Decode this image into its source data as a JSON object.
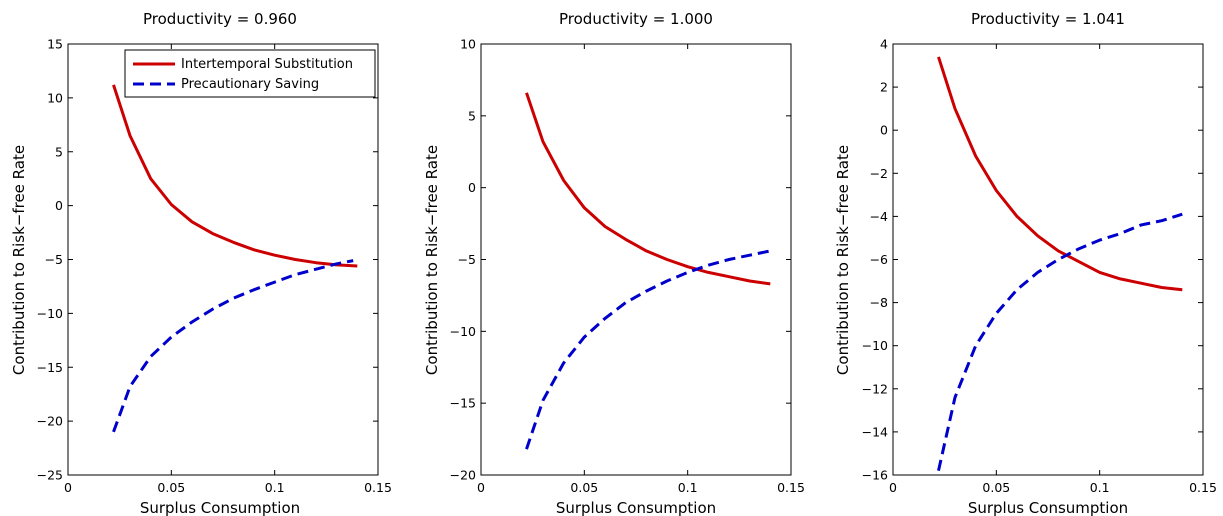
{
  "chart_data": [
    {
      "type": "line",
      "title": "Productivity = 0.960",
      "xlabel": "Surplus Consumption",
      "ylabel": "Contribution to Risk−free Rate",
      "xlim": [
        0,
        0.15
      ],
      "ylim": [
        -25,
        15
      ],
      "xticks": [
        0,
        0.05,
        0.1,
        0.15
      ],
      "xtick_labels": [
        "0",
        "0.05",
        "0.1",
        "0.15"
      ],
      "yticks": [
        -25,
        -20,
        -15,
        -10,
        -5,
        0,
        5,
        10,
        15
      ],
      "ytick_labels": [
        "−25",
        "−20",
        "−15",
        "−10",
        "−5",
        "0",
        "5",
        "10",
        "15"
      ],
      "grid": false,
      "legend": "top-right",
      "series": [
        {
          "name": "Intertemporal Substitution",
          "color": "#cc0000",
          "style": "solid",
          "x": [
            0.022,
            0.03,
            0.04,
            0.05,
            0.06,
            0.07,
            0.08,
            0.09,
            0.1,
            0.11,
            0.12,
            0.13,
            0.14
          ],
          "y": [
            11.2,
            6.5,
            2.5,
            0.1,
            -1.5,
            -2.6,
            -3.4,
            -4.1,
            -4.6,
            -5.0,
            -5.3,
            -5.5,
            -5.6
          ]
        },
        {
          "name": "Precautionary Saving",
          "color": "#0000cc",
          "style": "dashed",
          "x": [
            0.022,
            0.03,
            0.04,
            0.05,
            0.06,
            0.07,
            0.08,
            0.09,
            0.1,
            0.11,
            0.12,
            0.13,
            0.138
          ],
          "y": [
            -21.0,
            -16.8,
            -14.0,
            -12.2,
            -10.8,
            -9.6,
            -8.6,
            -7.8,
            -7.1,
            -6.4,
            -5.9,
            -5.4,
            -5.1
          ]
        }
      ]
    },
    {
      "type": "line",
      "title": "Productivity = 1.000",
      "xlabel": "Surplus Consumption",
      "ylabel": "Contribution to Risk−free Rate",
      "xlim": [
        0,
        0.15
      ],
      "ylim": [
        -20,
        10
      ],
      "xticks": [
        0,
        0.05,
        0.1,
        0.15
      ],
      "xtick_labels": [
        "0",
        "0.05",
        "0.1",
        "0.15"
      ],
      "yticks": [
        -20,
        -15,
        -10,
        -5,
        0,
        5,
        10
      ],
      "ytick_labels": [
        "−20",
        "−15",
        "−10",
        "−5",
        "0",
        "5",
        "10"
      ],
      "grid": false,
      "series": [
        {
          "color": "#cc0000",
          "style": "solid",
          "x": [
            0.022,
            0.03,
            0.04,
            0.05,
            0.06,
            0.07,
            0.08,
            0.09,
            0.1,
            0.11,
            0.12,
            0.13,
            0.14
          ],
          "y": [
            6.6,
            3.2,
            0.5,
            -1.4,
            -2.7,
            -3.6,
            -4.4,
            -5.0,
            -5.5,
            -5.9,
            -6.2,
            -6.5,
            -6.7
          ]
        },
        {
          "color": "#0000cc",
          "style": "dashed",
          "x": [
            0.022,
            0.03,
            0.04,
            0.05,
            0.06,
            0.07,
            0.08,
            0.09,
            0.1,
            0.11,
            0.12,
            0.13,
            0.14
          ],
          "y": [
            -18.2,
            -14.8,
            -12.2,
            -10.4,
            -9.1,
            -8.0,
            -7.2,
            -6.5,
            -5.9,
            -5.4,
            -5.0,
            -4.7,
            -4.4
          ]
        }
      ]
    },
    {
      "type": "line",
      "title": "Productivity = 1.041",
      "xlabel": "Surplus Consumption",
      "ylabel": "Contribution to Risk−free Rate",
      "xlim": [
        0,
        0.15
      ],
      "ylim": [
        -16,
        4
      ],
      "xticks": [
        0,
        0.05,
        0.1,
        0.15
      ],
      "xtick_labels": [
        "0",
        "0.05",
        "0.1",
        "0.15"
      ],
      "yticks": [
        -16,
        -14,
        -12,
        -10,
        -8,
        -6,
        -4,
        -2,
        0,
        2,
        4
      ],
      "ytick_labels": [
        "−16",
        "−14",
        "−12",
        "−10",
        "−8",
        "−6",
        "−4",
        "−2",
        "0",
        "2",
        "4"
      ],
      "grid": false,
      "series": [
        {
          "color": "#cc0000",
          "style": "solid",
          "x": [
            0.022,
            0.03,
            0.04,
            0.05,
            0.06,
            0.07,
            0.08,
            0.09,
            0.1,
            0.11,
            0.12,
            0.13,
            0.14
          ],
          "y": [
            3.4,
            1.0,
            -1.2,
            -2.8,
            -4.0,
            -4.9,
            -5.6,
            -6.1,
            -6.6,
            -6.9,
            -7.1,
            -7.3,
            -7.4
          ]
        },
        {
          "color": "#0000cc",
          "style": "dashed",
          "x": [
            0.022,
            0.03,
            0.04,
            0.05,
            0.06,
            0.07,
            0.08,
            0.09,
            0.1,
            0.11,
            0.12,
            0.13,
            0.14
          ],
          "y": [
            -15.8,
            -12.4,
            -10.0,
            -8.5,
            -7.4,
            -6.6,
            -6.0,
            -5.5,
            -5.1,
            -4.8,
            -4.4,
            -4.2,
            -3.9
          ]
        }
      ]
    }
  ]
}
